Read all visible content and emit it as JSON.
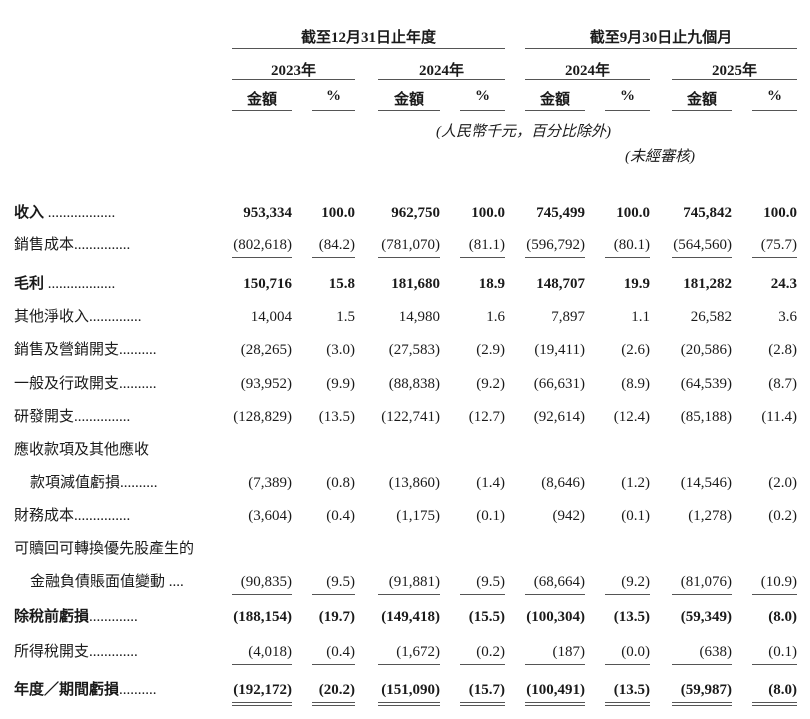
{
  "header": {
    "period_groups": [
      "截至12月31日止年度",
      "截至9月30日止九個月"
    ],
    "years": [
      "2023年",
      "2024年",
      "2024年",
      "2025年"
    ],
    "column_labels": [
      "金額",
      "%",
      "金額",
      "%",
      "金額",
      "%",
      "金額",
      "%"
    ],
    "currency_note": "(人民幣千元，百分比除外)",
    "unaudited_note": "(未經審核)"
  },
  "rows": [
    {
      "label": "收入",
      "leader": " ..................",
      "bold": true,
      "values": [
        "953,334",
        "100.0",
        "962,750",
        "100.0",
        "745,499",
        "100.0",
        "745,842",
        "100.0"
      ]
    },
    {
      "label": "銷售成本",
      "leader": "...............",
      "underline": true,
      "values": [
        "(802,618)",
        "(84.2)",
        "(781,070)",
        "(81.1)",
        "(596,792)",
        "(80.1)",
        "(564,560)",
        "(75.7)"
      ]
    },
    {
      "label": "毛利",
      "leader": " ..................",
      "bold": true,
      "values": [
        "150,716",
        "15.8",
        "181,680",
        "18.9",
        "148,707",
        "19.9",
        "181,282",
        "24.3"
      ]
    },
    {
      "label": "其他淨收入",
      "leader": "..............",
      "values": [
        "14,004",
        "1.5",
        "14,980",
        "1.6",
        "7,897",
        "1.1",
        "26,582",
        "3.6"
      ]
    },
    {
      "label": "銷售及營銷開支",
      "leader": "..........",
      "values": [
        "(28,265)",
        "(3.0)",
        "(27,583)",
        "(2.9)",
        "(19,411)",
        "(2.6)",
        "(20,586)",
        "(2.8)"
      ]
    },
    {
      "label": "一般及行政開支",
      "leader": "..........",
      "values": [
        "(93,952)",
        "(9.9)",
        "(88,838)",
        "(9.2)",
        "(66,631)",
        "(8.9)",
        "(64,539)",
        "(8.7)"
      ]
    },
    {
      "label": "研發開支",
      "leader": "...............",
      "values": [
        "(128,829)",
        "(13.5)",
        "(122,741)",
        "(12.7)",
        "(92,614)",
        "(12.4)",
        "(85,188)",
        "(11.4)"
      ]
    },
    {
      "label": "應收款項及其他應收",
      "leader": "",
      "values": []
    },
    {
      "label": "款項減值虧損",
      "leader": "..........",
      "indent": true,
      "values": [
        "(7,389)",
        "(0.8)",
        "(13,860)",
        "(1.4)",
        "(8,646)",
        "(1.2)",
        "(14,546)",
        "(2.0)"
      ]
    },
    {
      "label": "財務成本",
      "leader": "...............",
      "values": [
        "(3,604)",
        "(0.4)",
        "(1,175)",
        "(0.1)",
        "(942)",
        "(0.1)",
        "(1,278)",
        "(0.2)"
      ]
    },
    {
      "label": "可贖回可轉換優先股產生的",
      "leader": "",
      "values": []
    },
    {
      "label": "金融負債賬面值變動",
      "leader": " ....",
      "indent": true,
      "underline": true,
      "values": [
        "(90,835)",
        "(9.5)",
        "(91,881)",
        "(9.5)",
        "(68,664)",
        "(9.2)",
        "(81,076)",
        "(10.9)"
      ]
    },
    {
      "label": "除稅前虧損",
      "leader": ".............",
      "bold": true,
      "values": [
        "(188,154)",
        "(19.7)",
        "(149,418)",
        "(15.5)",
        "(100,304)",
        "(13.5)",
        "(59,349)",
        "(8.0)"
      ]
    },
    {
      "label": "所得稅開支",
      "leader": ".............",
      "underline": true,
      "values": [
        "(4,018)",
        "(0.4)",
        "(1,672)",
        "(0.2)",
        "(187)",
        "(0.0)",
        "(638)",
        "(0.1)"
      ]
    },
    {
      "label": "年度／期間虧損",
      "leader": "..........",
      "bold": true,
      "double_underline": true,
      "values": [
        "(192,172)",
        "(20.2)",
        "(151,090)",
        "(15.7)",
        "(100,491)",
        "(13.5)",
        "(59,987)",
        "(8.0)"
      ]
    }
  ]
}
